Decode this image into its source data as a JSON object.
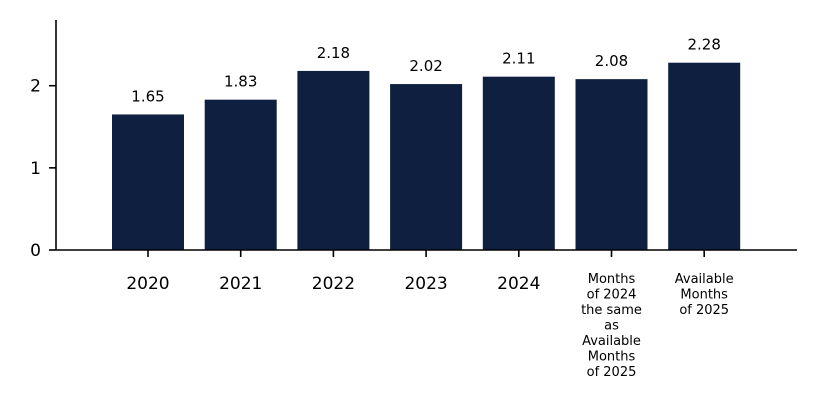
{
  "chart_data": {
    "type": "bar",
    "categories": [
      [
        "2020"
      ],
      [
        "2021"
      ],
      [
        "2022"
      ],
      [
        "2023"
      ],
      [
        "2024"
      ],
      [
        "Months",
        "of 2024",
        "the same",
        "as",
        "Available",
        "Months",
        "of 2025"
      ],
      [
        "Available",
        "Months",
        "of 2025"
      ]
    ],
    "values": [
      1.65,
      1.83,
      2.18,
      2.02,
      2.11,
      2.08,
      2.28
    ],
    "value_labels": [
      "1.65",
      "1.83",
      "2.18",
      "2.02",
      "2.11",
      "2.08",
      "2.28"
    ],
    "title": "",
    "xlabel": "",
    "ylabel": "",
    "ylim": [
      0,
      2.8
    ],
    "yticks": [
      0,
      1,
      2
    ],
    "ytick_labels": [
      "0",
      "1",
      "2"
    ],
    "grid": false,
    "legend": "none",
    "bar_color": "#0f1f3f"
  }
}
